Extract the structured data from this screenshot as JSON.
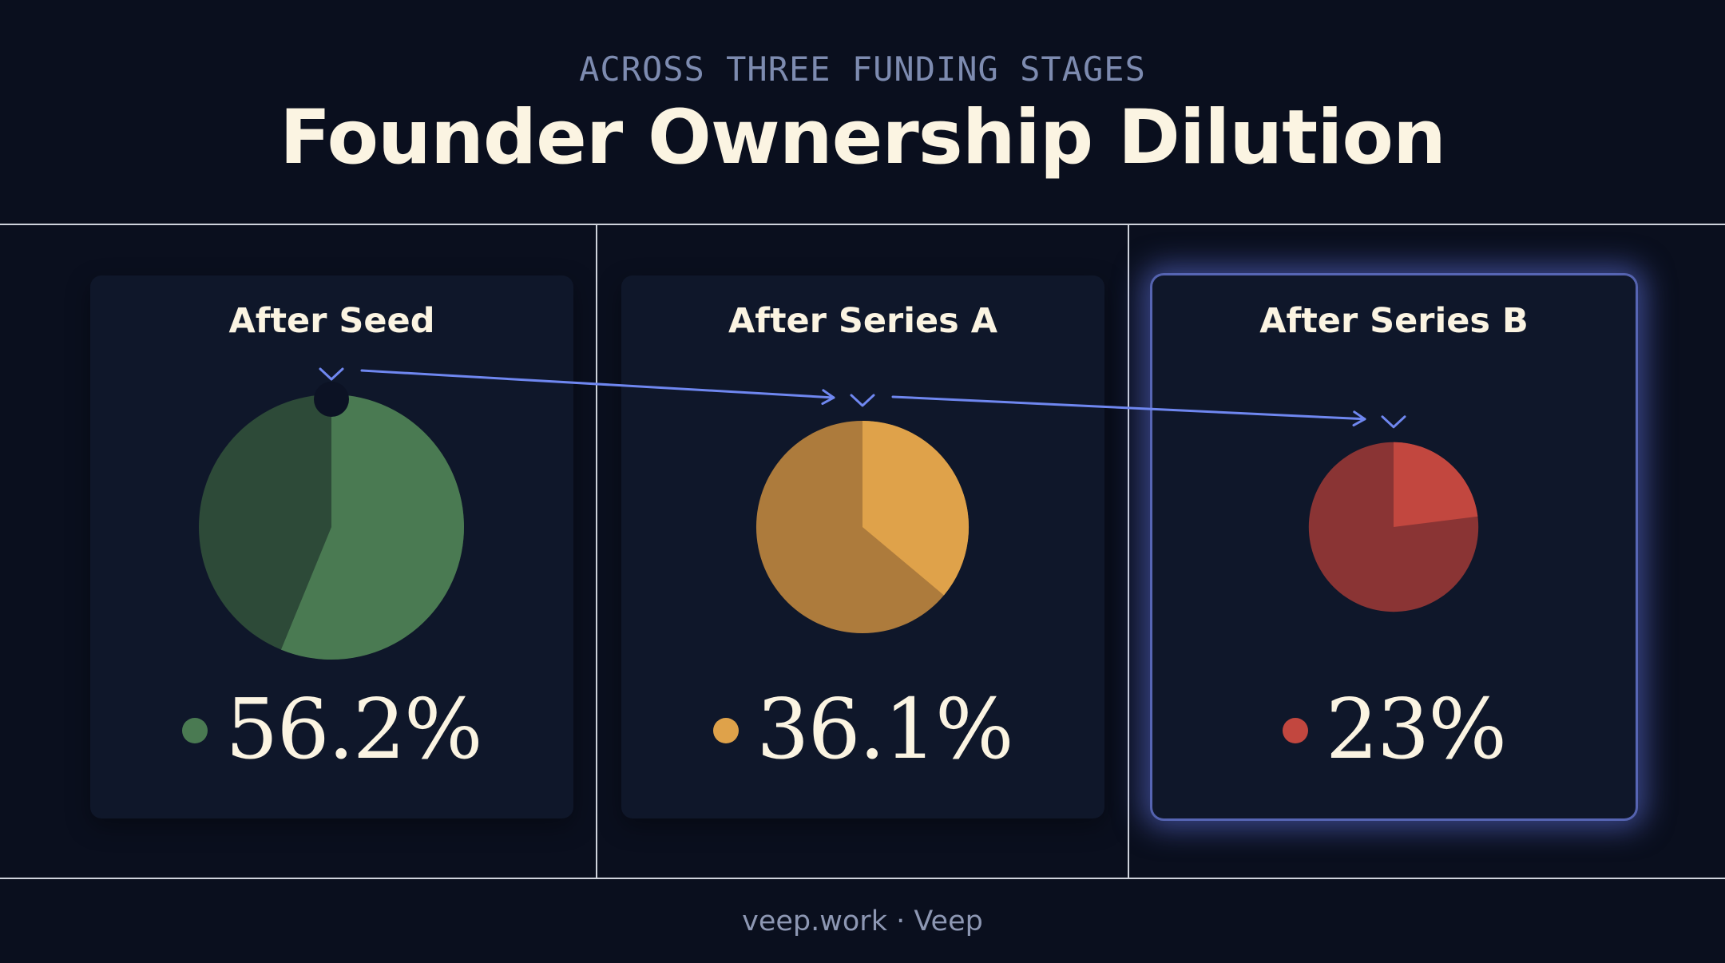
{
  "chart_data": {
    "type": "pie",
    "subtitle": "ACROSS THREE FUNDING STAGES",
    "title": "Founder Ownership Dilution",
    "series": [
      {
        "name": "After Seed",
        "value": 56.2,
        "label": "56.2%",
        "color": "#4a7a52",
        "rest_color": "#2d4a38"
      },
      {
        "name": "After Series A",
        "value": 36.1,
        "label": "36.1%",
        "color": "#dfa24a",
        "rest_color": "#ad7b3c"
      },
      {
        "name": "After Series B",
        "value": 23,
        "label": "23%",
        "color": "#c2473f",
        "rest_color": "#8a3434"
      }
    ],
    "highlighted": "After Series B"
  },
  "footer": "veep.work · Veep",
  "colors": {
    "background": "#0a0f1e",
    "card": "#0f172a",
    "arrow": "#6f87f0",
    "highlight_glow": "#6476e6"
  }
}
